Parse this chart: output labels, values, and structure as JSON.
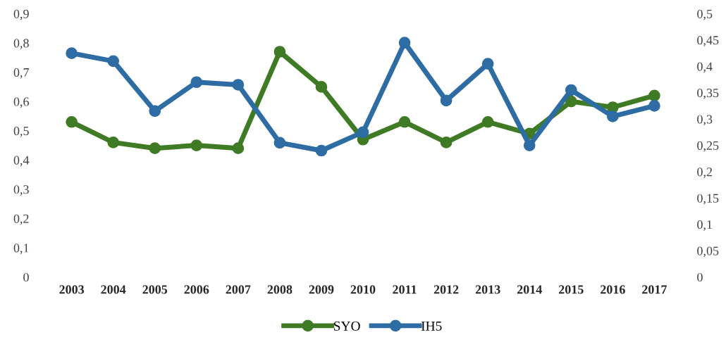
{
  "chart_data": {
    "type": "line",
    "categories": [
      "2003",
      "2004",
      "2005",
      "2006",
      "2007",
      "2008",
      "2009",
      "2010",
      "2011",
      "2012",
      "2013",
      "2014",
      "2015",
      "2016",
      "2017"
    ],
    "series": [
      {
        "name": "SYO",
        "color": "#3f7a25",
        "values": [
          0.53,
          0.46,
          0.44,
          0.45,
          0.44,
          0.77,
          0.65,
          0.47,
          0.53,
          0.46,
          0.53,
          0.49,
          0.6,
          0.58,
          0.62
        ]
      },
      {
        "name": "IH5",
        "color": "#2e6ca4",
        "axis": "y2",
        "values": [
          0.425,
          0.41,
          0.315,
          0.37,
          0.365,
          0.255,
          0.24,
          0.275,
          0.445,
          0.335,
          0.405,
          0.25,
          0.355,
          0.305,
          0.325
        ]
      }
    ],
    "ylim": [
      0,
      0.9
    ],
    "yticks": [
      0,
      {
        "value": 0.1,
        "label": "0,1"
      },
      {
        "value": 0.2,
        "label": "0,2"
      },
      {
        "value": 0.3,
        "label": "0,3"
      },
      {
        "value": 0.4,
        "label": "0,4"
      },
      {
        "value": 0.5,
        "label": "0,5"
      },
      {
        "value": 0.6,
        "label": "0,6"
      },
      {
        "value": 0.7,
        "label": "0,7"
      },
      {
        "value": 0.8,
        "label": "0,8"
      },
      {
        "value": 0.9,
        "label": "0,9"
      }
    ],
    "y2lim": [
      0,
      0.5
    ],
    "y2ticks": [
      0,
      {
        "value": 0.05,
        "label": "0,05"
      },
      {
        "value": 0.1,
        "label": "0,1"
      },
      {
        "value": 0.15,
        "label": "0,15"
      },
      {
        "value": 0.2,
        "label": "0,2"
      },
      {
        "value": 0.25,
        "label": "0,25"
      },
      {
        "value": 0.3,
        "label": "0,3"
      },
      {
        "value": 0.35,
        "label": "0,35"
      },
      {
        "value": 0.4,
        "label": "0,4"
      },
      {
        "value": 0.45,
        "label": "0,45"
      },
      {
        "value": 0.5,
        "label": "0,5"
      }
    ],
    "grid": false,
    "legend": "bottom",
    "marker": "circle",
    "line_style": "solid"
  }
}
